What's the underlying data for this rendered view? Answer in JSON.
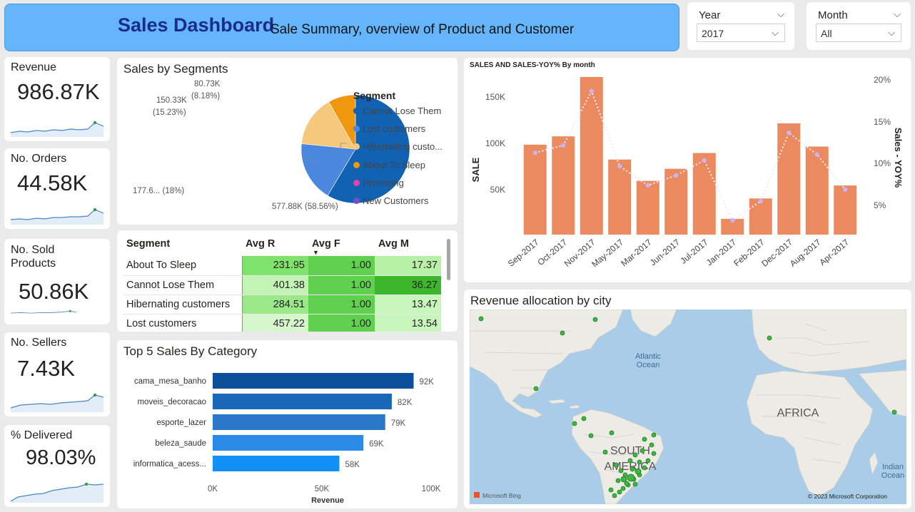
{
  "header": {
    "title": "Sales Dashboard",
    "subtitle": "Sale Summary, overview of Product and Customer"
  },
  "filters": {
    "year": {
      "label": "Year",
      "value": "2017"
    },
    "month": {
      "label": "Month",
      "value": "All"
    }
  },
  "kpis": {
    "revenue": {
      "label": "Revenue",
      "value": "986.87K"
    },
    "orders": {
      "label": "No. Orders",
      "value": "44.58K"
    },
    "sold_products": {
      "label": "No. Sold Products",
      "value": "50.86K"
    },
    "sellers": {
      "label": "No. Sellers",
      "value": "7.43K"
    },
    "delivered": {
      "label": "% Delivered",
      "value": "98.03%"
    }
  },
  "segments_pie": {
    "title": "Sales by Segments",
    "legend_title": "Segment",
    "legend": [
      {
        "label": "Cannot Lose Them",
        "color": "#1262b3"
      },
      {
        "label": "Lost customers",
        "color": "#4a88dd"
      },
      {
        "label": "Hibernating custo...",
        "color": "#f5c87c"
      },
      {
        "label": "About To Sleep",
        "color": "#f0960f"
      },
      {
        "label": "Promising",
        "color": "#e044a7"
      },
      {
        "label": "New Customers",
        "color": "#744ec2"
      }
    ],
    "slice_labels": {
      "cannot_lose": "577.88K (58.56%)",
      "lost": "177.6... (18%)",
      "hibernating_value": "150.33K",
      "hibernating_pct": "(15.23%)",
      "about_value": "80.73K",
      "about_pct": "(8.18%)"
    }
  },
  "rfm_table": {
    "headers": [
      "Segment",
      "Avg R",
      "Avg F",
      "Avg M"
    ],
    "sort_indicator": "▼",
    "rows": [
      {
        "segment": "About To Sleep",
        "r": "231.95",
        "f": "1.00",
        "m": "17.37",
        "r_bg": "#7ee26b",
        "f_bg": "#5fd14e",
        "m_bg": "#b7f0a6"
      },
      {
        "segment": "Cannot Lose Them",
        "r": "401.38",
        "f": "1.00",
        "m": "36.27",
        "r_bg": "#c3f3b5",
        "f_bg": "#5fd14e",
        "m_bg": "#3cb72c"
      },
      {
        "segment": "Hibernating customers",
        "r": "284.51",
        "f": "1.00",
        "m": "13.47",
        "r_bg": "#9ae887",
        "f_bg": "#5fd14e",
        "m_bg": "#c8f5bb"
      },
      {
        "segment": "Lost customers",
        "r": "457.22",
        "f": "1.00",
        "m": "13.54",
        "r_bg": "#d6f7cb",
        "f_bg": "#5fd14e",
        "m_bg": "#c8f5bb"
      }
    ]
  },
  "category_chart": {
    "title": "Top 5 Sales By Category",
    "xlabel": "Revenue",
    "ticks": [
      "0K",
      "50K",
      "100K"
    ]
  },
  "sales_chart": {
    "title": "SALES AND SALES-YOY% By month",
    "ylabel_left": "SALE",
    "ylabel_right": "Sales - YOY%",
    "left_ticks": [
      "50K",
      "100K",
      "150K"
    ],
    "right_ticks": [
      "5%",
      "10%",
      "15%",
      "20%"
    ]
  },
  "map": {
    "title": "Revenue allocation by city",
    "labels": {
      "ocean_line1": "Atlantic",
      "ocean_line2": "Ocean",
      "africa": "AFRICA",
      "south_line1": "SOUTH",
      "south_line2": "AMERICA",
      "indian_line1": "Indian",
      "indian_line2": "Ocean"
    },
    "attribution": "© 2023 Microsoft Corporation",
    "bing": "Microsoft Bing"
  },
  "chart_data": [
    {
      "type": "pie",
      "title": "Sales by Segments",
      "categories": [
        "Cannot Lose Them",
        "Lost customers",
        "Hibernating customers",
        "About To Sleep"
      ],
      "values": [
        577.88,
        177.6,
        150.33,
        80.73
      ],
      "percent": [
        58.56,
        18.0,
        15.23,
        8.18
      ],
      "colors": [
        "#1262b3",
        "#4a88dd",
        "#f5c87c",
        "#f0960f"
      ]
    },
    {
      "type": "bar",
      "orientation": "horizontal",
      "title": "Top 5 Sales By Category",
      "categories": [
        "cama_mesa_banho",
        "moveis_decoracao",
        "esporte_lazer",
        "beleza_saude",
        "informatica_acess..."
      ],
      "values": [
        92,
        82,
        79,
        69,
        58
      ],
      "value_labels": [
        "92K",
        "82K",
        "79K",
        "69K",
        "58K"
      ],
      "colors": [
        "#0d4f9b",
        "#1a66b8",
        "#2a78c8",
        "#2b8ae6",
        "#1390f5"
      ],
      "xlabel": "Revenue",
      "xlim": [
        0,
        100
      ]
    },
    {
      "type": "bar",
      "title": "SALES AND SALES-YOY% By month",
      "categories": [
        "Sep-2017",
        "Oct-2017",
        "Nov-2017",
        "May-2017",
        "Mar-2017",
        "Jun-2017",
        "Jul-2017",
        "Jan-2017",
        "Feb-2017",
        "Dec-2017",
        "Aug-2017",
        "Apr-2017"
      ],
      "series": [
        {
          "name": "SALE",
          "kind": "bar",
          "values": [
            97,
            106,
            170,
            81,
            58,
            71,
            88,
            17,
            39,
            120,
            95,
            53
          ],
          "color": "#ec8a5f"
        },
        {
          "name": "Sales - YOY%",
          "kind": "line",
          "axis": "right",
          "values": [
            9.8,
            10.7,
            17.2,
            8.2,
            5.9,
            7.1,
            8.9,
            1.7,
            4.0,
            12.2,
            9.6,
            5.4
          ],
          "color": "#c9b3f0"
        }
      ],
      "ylabel": "SALE",
      "ylim": [
        0,
        175
      ],
      "ylabel_right": "Sales - YOY%",
      "ylim_right": [
        0,
        20
      ]
    }
  ]
}
